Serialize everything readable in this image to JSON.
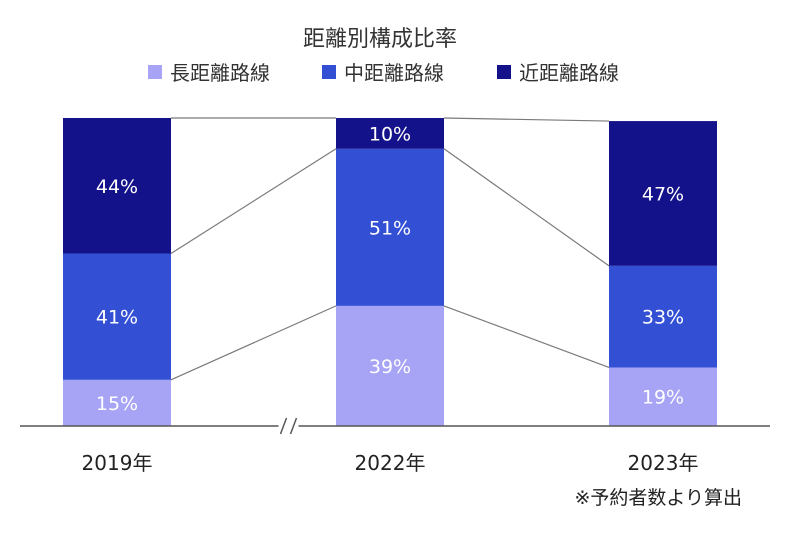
{
  "chart_data": {
    "type": "bar",
    "stacked": true,
    "title": "距離別構成比率",
    "categories": [
      "2019年",
      "2022年",
      "2023年"
    ],
    "series": [
      {
        "name": "長距離路線",
        "color": "#a7a3f5",
        "values": [
          15,
          39,
          19
        ]
      },
      {
        "name": "中距離路線",
        "color": "#3350d5",
        "values": [
          41,
          51,
          33
        ]
      },
      {
        "name": "近距離路線",
        "color": "#14128a",
        "values": [
          44,
          10,
          47
        ]
      }
    ],
    "value_suffix": "%",
    "ylim": [
      0,
      100
    ],
    "axis_break_between": [
      0,
      1
    ],
    "note": "※予約者数より算出"
  }
}
